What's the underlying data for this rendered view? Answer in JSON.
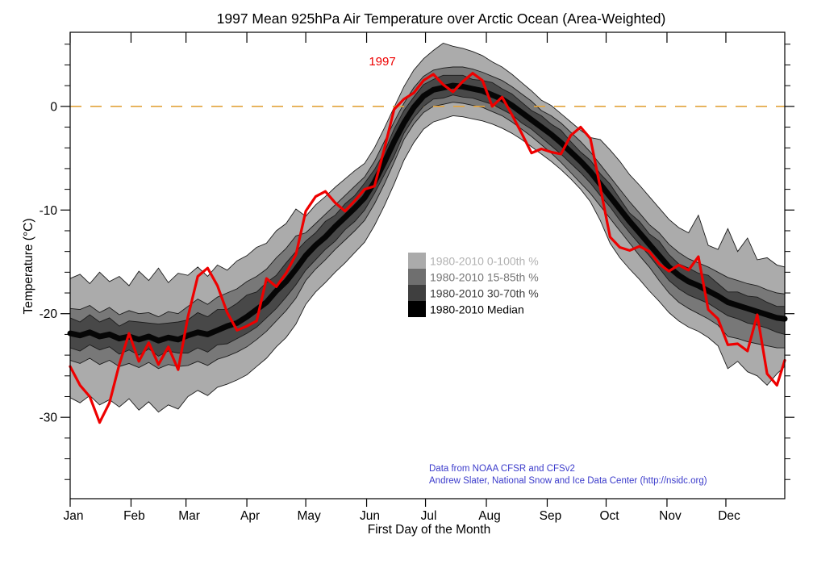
{
  "title": "1997 Mean 925hPa Air Temperature over Arctic Ocean (Area-Weighted)",
  "annotation": {
    "label": "1997",
    "color": "#ee0000"
  },
  "y_axis": {
    "label": "Temperature (°C)",
    "major_ticks": [
      0,
      -10,
      -20,
      -30
    ],
    "tick_labels": [
      "0",
      "-10",
      "-20",
      "-30"
    ],
    "minor_step": 2
  },
  "x_axis": {
    "label": "First Day of the Month",
    "month_labels": [
      "Jan",
      "Feb",
      "Mar",
      "Apr",
      "May",
      "Jun",
      "Jul",
      "Aug",
      "Sep",
      "Oct",
      "Nov",
      "Dec"
    ],
    "month_start_days": [
      1,
      32,
      60,
      91,
      121,
      152,
      182,
      213,
      244,
      274,
      305,
      335
    ]
  },
  "legend": {
    "items": [
      {
        "label": "1980-2010 0-100th %",
        "swatch": "#ababab",
        "text_color": "#b2b2b2"
      },
      {
        "label": "1980-2010 15-85th %",
        "swatch": "#6f6f6f",
        "text_color": "#757575"
      },
      {
        "label": "1980-2010 30-70th %",
        "swatch": "#3f3f3f",
        "text_color": "#3c3c3c"
      },
      {
        "label": "1980-2010 Median",
        "swatch": "#000000",
        "text_color": "#000000"
      }
    ]
  },
  "credits": {
    "line1": "Data from NOAA CFSR and CFSv2",
    "line2": "Andrew Slater, National Snow and Ice Data Center (http://nsidc.org)",
    "color": "#3b3bcb"
  },
  "colors": {
    "band_0_100": "#ababab",
    "band_15_85": "#787878",
    "band_30_70": "#484848",
    "median": "#060606",
    "line_1997": "#ee0000",
    "zero_line": "#e2a33c",
    "band_edge": "#1c1c1c",
    "axis": "#000000"
  },
  "chart_data": {
    "type": "line+band",
    "xlabel": "First Day of the Month",
    "ylabel": "Temperature (°C)",
    "xlim": [
      1,
      365
    ],
    "ylim": [
      -37.85,
      7.15
    ],
    "zero_reference_line": 0,
    "x_days": [
      1,
      6,
      11,
      16,
      21,
      26,
      31,
      36,
      41,
      46,
      51,
      56,
      61,
      66,
      71,
      76,
      81,
      86,
      91,
      96,
      101,
      106,
      111,
      116,
      121,
      126,
      131,
      136,
      141,
      146,
      151,
      156,
      161,
      166,
      171,
      176,
      181,
      186,
      191,
      196,
      201,
      206,
      211,
      216,
      221,
      226,
      231,
      236,
      241,
      246,
      251,
      256,
      261,
      266,
      271,
      276,
      281,
      286,
      291,
      296,
      301,
      306,
      311,
      316,
      321,
      326,
      331,
      336,
      341,
      346,
      351,
      356,
      361,
      365
    ],
    "percentile_bands": {
      "p0": [
        -28.1,
        -28.6,
        -27.9,
        -28.8,
        -28.3,
        -29.0,
        -28.2,
        -29.3,
        -28.5,
        -29.5,
        -28.8,
        -29.2,
        -28.0,
        -27.4,
        -27.9,
        -27.1,
        -26.8,
        -26.4,
        -25.9,
        -25.1,
        -24.3,
        -23.2,
        -22.3,
        -21.0,
        -19.1,
        -17.9,
        -17.0,
        -16.0,
        -15.1,
        -14.1,
        -13.1,
        -11.5,
        -9.6,
        -7.5,
        -5.2,
        -3.5,
        -2.2,
        -1.5,
        -1.2,
        -0.9,
        -1.0,
        -1.2,
        -1.4,
        -1.7,
        -2.1,
        -2.6,
        -3.2,
        -3.9,
        -4.6,
        -5.3,
        -6.1,
        -7.0,
        -8.0,
        -9.2,
        -11.0,
        -13.2,
        -14.6,
        -15.7,
        -16.7,
        -17.8,
        -18.8,
        -19.9,
        -20.7,
        -21.3,
        -21.7,
        -22.3,
        -23.1,
        -25.3,
        -24.6,
        -25.6,
        -26.0,
        -26.9,
        -25.8,
        -25.1
      ],
      "p15": [
        -24.5,
        -24.8,
        -24.3,
        -24.9,
        -24.5,
        -25.1,
        -24.8,
        -25.2,
        -24.7,
        -25.3,
        -24.9,
        -25.1,
        -25.0,
        -24.6,
        -25.0,
        -24.4,
        -24.1,
        -23.7,
        -23.2,
        -22.5,
        -21.7,
        -20.7,
        -19.7,
        -18.5,
        -16.8,
        -15.7,
        -14.8,
        -13.8,
        -12.9,
        -12.0,
        -11.0,
        -9.4,
        -7.5,
        -5.4,
        -3.2,
        -1.7,
        -0.6,
        0.0,
        0.2,
        0.4,
        0.3,
        0.1,
        -0.1,
        -0.5,
        -0.9,
        -1.5,
        -2.2,
        -2.9,
        -3.7,
        -4.5,
        -5.4,
        -6.4,
        -7.4,
        -8.4,
        -9.6,
        -10.8,
        -12.0,
        -13.2,
        -14.4,
        -15.5,
        -16.8,
        -18.0,
        -18.9,
        -19.5,
        -20.0,
        -20.5,
        -21.1,
        -22.2,
        -22.4,
        -22.7,
        -22.9,
        -23.1,
        -23.3,
        -23.3
      ],
      "p30": [
        -23.3,
        -23.6,
        -23.0,
        -23.5,
        -23.2,
        -23.9,
        -23.5,
        -24.0,
        -23.4,
        -24.1,
        -23.6,
        -23.8,
        -23.8,
        -23.3,
        -23.7,
        -23.0,
        -22.9,
        -22.4,
        -21.9,
        -21.3,
        -20.4,
        -19.5,
        -18.4,
        -17.2,
        -15.8,
        -14.8,
        -13.8,
        -13.0,
        -11.9,
        -11.1,
        -10.0,
        -8.4,
        -6.6,
        -4.8,
        -2.6,
        -1.1,
        0.0,
        0.7,
        0.8,
        1.1,
        0.9,
        0.8,
        0.5,
        0.2,
        -0.3,
        -0.8,
        -1.6,
        -2.2,
        -3.0,
        -3.8,
        -4.6,
        -5.5,
        -6.4,
        -7.4,
        -8.6,
        -9.7,
        -11.0,
        -12.2,
        -13.3,
        -14.4,
        -15.6,
        -16.8,
        -17.6,
        -18.2,
        -18.6,
        -19.0,
        -19.6,
        -20.2,
        -20.5,
        -20.9,
        -21.1,
        -21.4,
        -21.8,
        -22.0
      ],
      "median": [
        -21.9,
        -22.1,
        -21.8,
        -22.2,
        -22.0,
        -22.4,
        -22.2,
        -22.5,
        -22.2,
        -22.6,
        -22.3,
        -22.5,
        -22.1,
        -21.8,
        -22.0,
        -21.6,
        -21.2,
        -20.9,
        -20.3,
        -19.6,
        -18.9,
        -17.8,
        -16.9,
        -15.7,
        -14.4,
        -13.4,
        -12.6,
        -11.6,
        -10.7,
        -9.8,
        -8.8,
        -7.3,
        -5.4,
        -3.4,
        -1.6,
        -0.1,
        1.0,
        1.6,
        1.8,
        2.0,
        1.9,
        1.7,
        1.5,
        1.1,
        0.7,
        0.1,
        -0.6,
        -1.3,
        -2.0,
        -2.7,
        -3.5,
        -4.4,
        -5.3,
        -6.3,
        -7.5,
        -8.7,
        -9.9,
        -11.1,
        -12.2,
        -13.3,
        -14.4,
        -15.5,
        -16.3,
        -16.9,
        -17.3,
        -17.8,
        -18.3,
        -18.9,
        -19.2,
        -19.5,
        -19.8,
        -20.1,
        -20.4,
        -20.5
      ],
      "p70": [
        -20.4,
        -20.8,
        -20.1,
        -20.8,
        -20.4,
        -21.2,
        -20.7,
        -20.8,
        -20.9,
        -21.0,
        -20.9,
        -20.8,
        -20.6,
        -19.9,
        -20.3,
        -19.6,
        -19.6,
        -19.0,
        -18.2,
        -17.9,
        -17.0,
        -16.3,
        -15.1,
        -14.0,
        -13.0,
        -12.2,
        -11.1,
        -10.5,
        -9.4,
        -8.6,
        -7.4,
        -6.1,
        -4.4,
        -2.2,
        -0.4,
        0.9,
        2.1,
        2.6,
        3.0,
        3.0,
        3.0,
        2.6,
        2.5,
        2.3,
        1.7,
        1.2,
        0.4,
        -0.4,
        -0.9,
        -1.7,
        -2.3,
        -3.4,
        -4.4,
        -5.2,
        -6.5,
        -7.5,
        -8.9,
        -10.3,
        -11.1,
        -12.3,
        -13.0,
        -14.3,
        -15.2,
        -15.6,
        -16.1,
        -16.3,
        -17.1,
        -17.9,
        -17.9,
        -18.3,
        -18.4,
        -18.9,
        -19.3,
        -19.3
      ],
      "p85": [
        -19.5,
        -19.6,
        -19.2,
        -19.9,
        -19.4,
        -20.1,
        -19.7,
        -20.0,
        -19.9,
        -20.3,
        -19.8,
        -20.0,
        -19.3,
        -18.6,
        -19.1,
        -18.4,
        -18.0,
        -17.6,
        -16.9,
        -16.4,
        -15.7,
        -14.6,
        -13.7,
        -12.5,
        -12.2,
        -11.3,
        -10.4,
        -9.5,
        -8.6,
        -7.7,
        -6.8,
        -5.3,
        -3.4,
        -1.5,
        0.3,
        1.8,
        2.9,
        3.5,
        3.7,
        3.8,
        3.8,
        3.6,
        3.3,
        2.9,
        2.5,
        1.9,
        1.2,
        0.5,
        -0.4,
        -0.9,
        -1.6,
        -2.5,
        -3.4,
        -4.4,
        -5.6,
        -6.8,
        -8.0,
        -9.2,
        -10.3,
        -11.4,
        -12.2,
        -13.3,
        -14.1,
        -14.7,
        -15.1,
        -15.5,
        -16.0,
        -16.5,
        -16.8,
        -17.1,
        -17.3,
        -17.7,
        -18.0,
        -18.1
      ],
      "p100": [
        -16.6,
        -16.2,
        -17.1,
        -16.0,
        -16.9,
        -16.4,
        -17.3,
        -15.9,
        -16.8,
        -15.6,
        -17.0,
        -16.1,
        -16.3,
        -15.5,
        -16.4,
        -15.3,
        -15.8,
        -14.9,
        -14.4,
        -13.6,
        -13.2,
        -12.0,
        -11.3,
        -9.9,
        -10.6,
        -9.5,
        -8.7,
        -7.8,
        -7.0,
        -6.2,
        -5.5,
        -4.0,
        -2.1,
        -0.1,
        1.9,
        3.5,
        4.6,
        5.4,
        6.1,
        5.8,
        5.6,
        5.3,
        4.9,
        4.3,
        3.8,
        3.1,
        2.3,
        1.5,
        0.6,
        0.1,
        -0.7,
        -1.5,
        -2.3,
        -3.0,
        -3.2,
        -4.2,
        -5.3,
        -6.6,
        -7.6,
        -8.7,
        -9.8,
        -10.9,
        -11.7,
        -12.2,
        -10.5,
        -13.4,
        -13.8,
        -11.8,
        -14.0,
        -12.7,
        -14.8,
        -14.6,
        -15.3,
        -15.5
      ]
    },
    "series_1997": [
      -25.1,
      -26.9,
      -28.0,
      -30.5,
      -28.6,
      -24.9,
      -21.9,
      -24.6,
      -22.8,
      -24.9,
      -23.2,
      -25.4,
      -20.3,
      -16.4,
      -15.6,
      -17.3,
      -19.9,
      -21.6,
      -21.2,
      -20.7,
      -16.6,
      -17.4,
      -16.1,
      -14.3,
      -10.1,
      -8.7,
      -8.2,
      -9.3,
      -10.1,
      -9.1,
      -8.0,
      -7.7,
      -4.1,
      -0.3,
      0.7,
      1.3,
      2.5,
      3.1,
      2.1,
      1.4,
      2.4,
      3.2,
      2.5,
      0.0,
      0.9,
      -0.8,
      -2.6,
      -4.5,
      -4.1,
      -4.4,
      -4.6,
      -2.8,
      -2.0,
      -3.1,
      -7.8,
      -12.6,
      -13.6,
      -13.9,
      -13.5,
      -14.0,
      -15.2,
      -15.9,
      -15.3,
      -15.8,
      -14.5,
      -19.6,
      -20.5,
      -23.0,
      -22.9,
      -23.6,
      -20.1,
      -25.8,
      -26.9,
      -24.5
    ]
  }
}
